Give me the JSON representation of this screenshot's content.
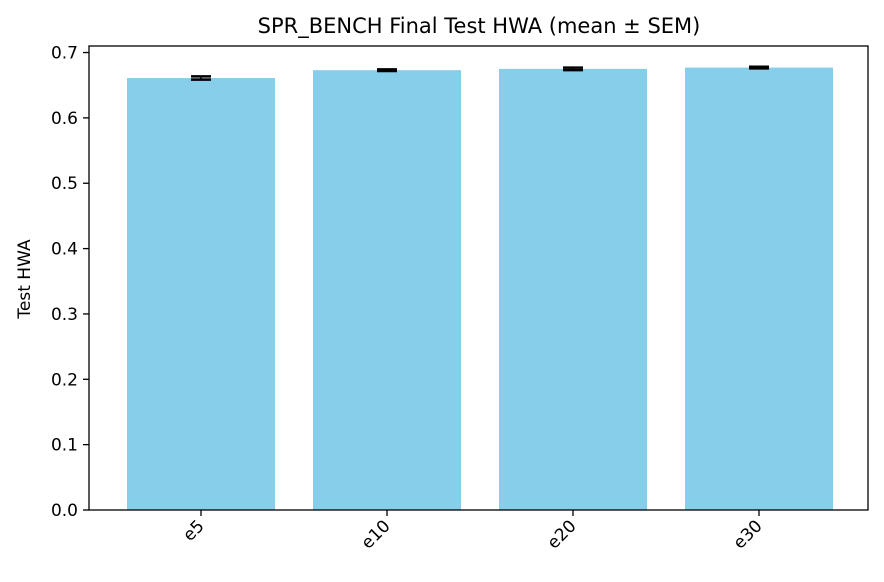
{
  "chart_data": {
    "type": "bar",
    "title": "SPR_BENCH Final Test HWA (mean ± SEM)",
    "xlabel": "",
    "ylabel": "Test HWA",
    "categories": [
      "e5",
      "e10",
      "e20",
      "e30"
    ],
    "values": [
      0.661,
      0.673,
      0.675,
      0.677
    ],
    "errors": [
      0.0025,
      0.0012,
      0.002,
      0.0012
    ],
    "ylim": [
      0,
      0.71
    ],
    "yticks": [
      0.0,
      0.1,
      0.2,
      0.3,
      0.4,
      0.5,
      0.6,
      0.7
    ],
    "ytick_labels": [
      "0.0",
      "0.1",
      "0.2",
      "0.3",
      "0.4",
      "0.5",
      "0.6",
      "0.7"
    ],
    "bar_color": "#87CEEB",
    "error_color": "#000000",
    "grid": false,
    "legend": "none"
  }
}
